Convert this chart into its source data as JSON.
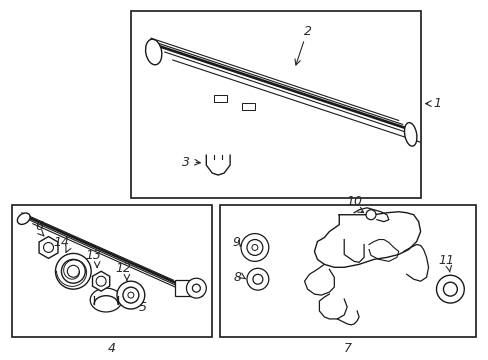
{
  "background_color": "#ffffff",
  "line_color": "#1a1a1a",
  "text_color": "#2a2a2a",
  "fig_width": 4.89,
  "fig_height": 3.6,
  "dpi": 100
}
